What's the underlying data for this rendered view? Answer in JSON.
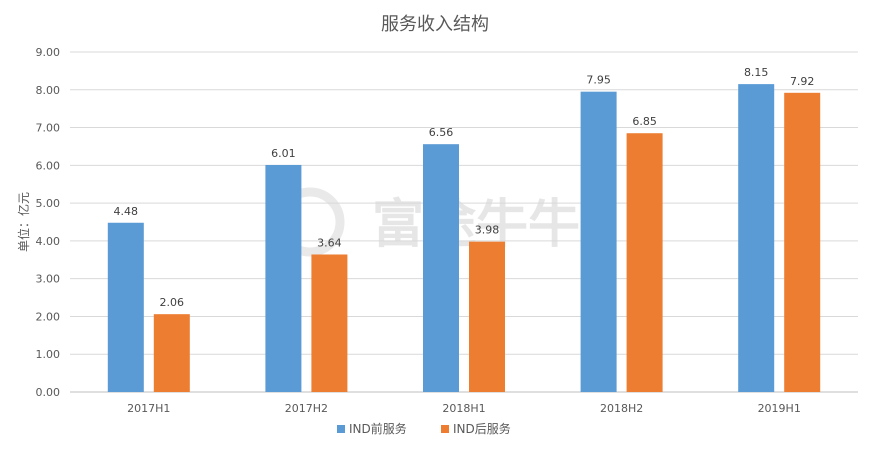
{
  "chart_data": {
    "type": "bar",
    "title": "服务收入结构",
    "ylabel": "单位：亿元",
    "xlabel": "",
    "categories": [
      "2017H1",
      "2017H2",
      "2018H1",
      "2018H2",
      "2019H1"
    ],
    "series": [
      {
        "name": "IND前服务",
        "color": "#5B9BD5",
        "values": [
          4.48,
          6.01,
          6.56,
          7.95,
          8.15
        ]
      },
      {
        "name": "IND后服务",
        "color": "#ED7D31",
        "values": [
          2.06,
          3.64,
          3.98,
          6.85,
          7.92
        ]
      }
    ],
    "ylim": [
      0,
      9
    ],
    "yticks": [
      0,
      1,
      2,
      3,
      4,
      5,
      6,
      7,
      8,
      9
    ],
    "tick_decimals": 2,
    "grid": true,
    "legend_position": "bottom",
    "watermark": "富途牛牛"
  }
}
